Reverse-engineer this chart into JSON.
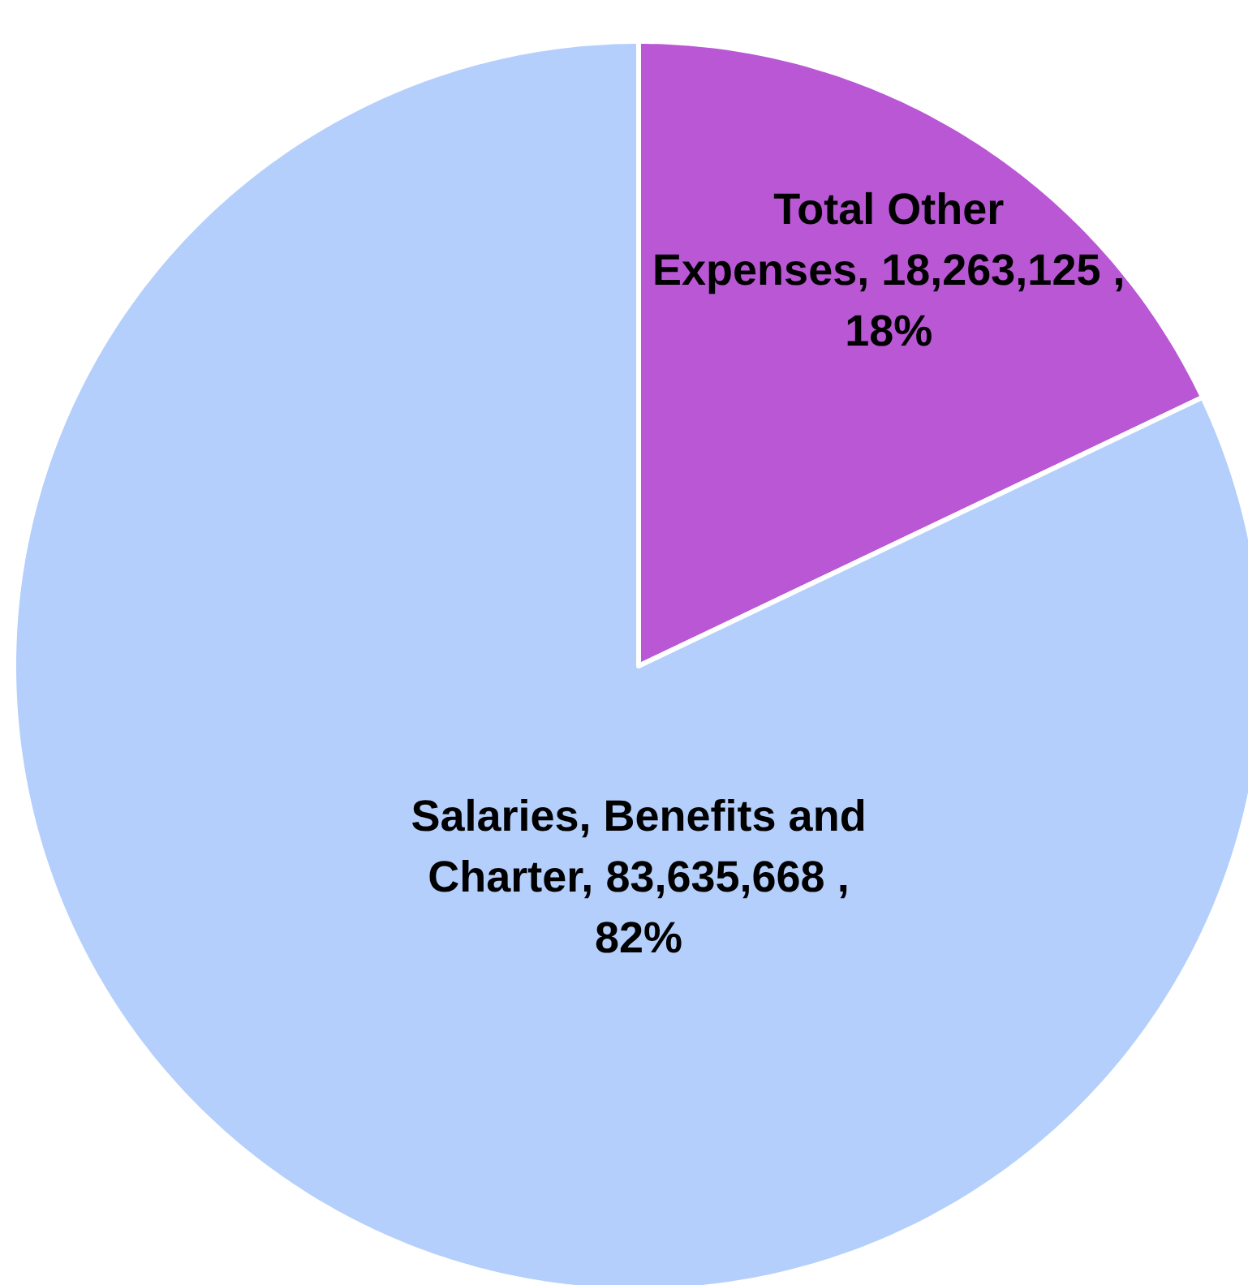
{
  "chart_data": {
    "type": "pie",
    "categories": [
      "Total Other Expenses",
      "Salaries, Benefits and Charter"
    ],
    "values": [
      18263125,
      83635668
    ],
    "value_labels": [
      "18,263,125 , 18%",
      "83,635,668 , 82%"
    ],
    "colors": [
      "#b957d4",
      "#b4cffc"
    ]
  }
}
